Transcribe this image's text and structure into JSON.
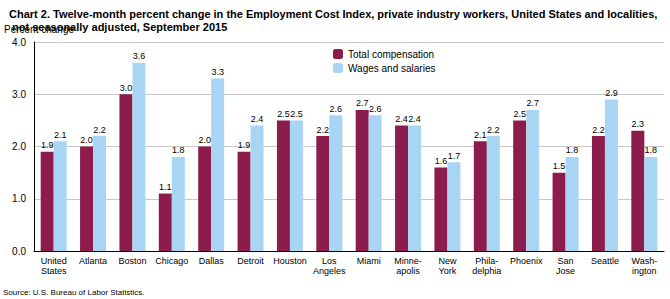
{
  "chart_data": {
    "type": "bar",
    "title": "Chart 2. Twelve-month percent change in the Employment Cost Index, private industry workers, United States and localities, not seasonally adjusted, September 2015",
    "y_label": "Percent change",
    "source": "Source: U.S. Bureau of Labor Statistics.",
    "categories": [
      "United\nStates",
      "Atlanta",
      "Boston",
      "Chicago",
      "Dallas",
      "Detroit",
      "Houston",
      "Los\nAngeles",
      "Miami",
      "Minne-\napolis",
      "New\nYork",
      "Phila-\ndelphia",
      "Phoenix",
      "San\nJose",
      "Seattle",
      "Wash-\nington"
    ],
    "series": [
      {
        "name": "Total compensation",
        "color": "#8b1c4c",
        "values": [
          1.9,
          2.0,
          3.0,
          1.1,
          2.0,
          1.9,
          2.5,
          2.2,
          2.7,
          2.4,
          1.6,
          2.1,
          2.5,
          1.5,
          2.2,
          2.3
        ],
        "value_labels": [
          "1.9",
          "2.0",
          "3.0",
          "1.1",
          "2.0",
          "1.9",
          "2.5",
          "2.2",
          "2.7",
          "2.4",
          "1.6",
          "2.1",
          "2.5",
          "1.5",
          "2.2",
          "2.3"
        ]
      },
      {
        "name": "Wages and salaries",
        "color": "#a9d5f5",
        "values": [
          2.1,
          2.2,
          3.6,
          1.8,
          3.3,
          2.4,
          2.5,
          2.6,
          2.6,
          2.4,
          1.7,
          2.2,
          2.7,
          1.8,
          2.9,
          1.8
        ],
        "value_labels": [
          "2.1",
          "2.2",
          "3.6",
          "1.8",
          "3.3",
          "2.4",
          "2.5",
          "2.6",
          "2.6",
          "2.4",
          "1.7",
          "2.2",
          "2.7",
          "1.8",
          "2.9",
          "1.8"
        ]
      }
    ],
    "ylim": [
      0,
      4
    ],
    "yticks": [
      {
        "value": 0,
        "label": "0.0"
      },
      {
        "value": 1,
        "label": "1.0"
      },
      {
        "value": 2,
        "label": "2.0"
      },
      {
        "value": 3,
        "label": "3.0"
      },
      {
        "value": 4,
        "label": "4.0"
      }
    ],
    "grid": true,
    "legend": "top",
    "data_labels": true
  }
}
